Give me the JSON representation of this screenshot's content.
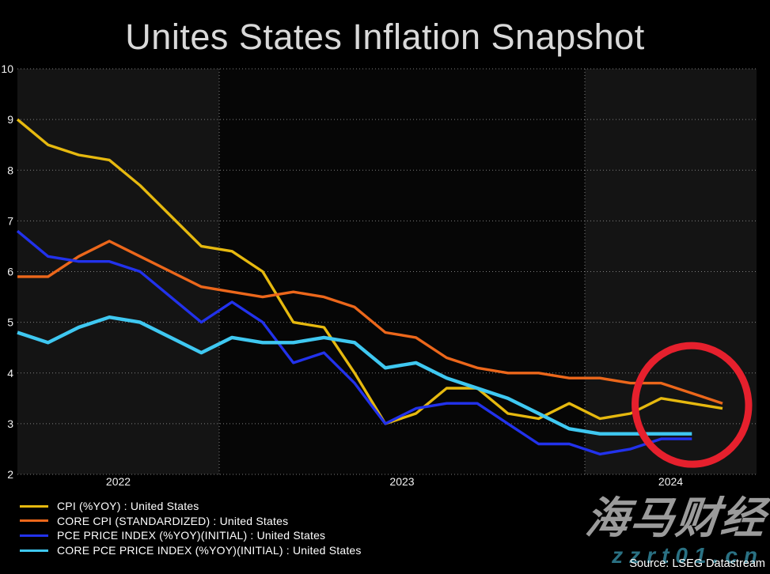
{
  "title": "Unites States Inflation Snapshot",
  "source": "Source: LSEG Datastream",
  "watermark": {
    "brand": "海马财经",
    "site": "zzrt01.cn"
  },
  "chart_data": {
    "type": "line",
    "title": "Unites States Inflation Snapshot",
    "ylabel": "",
    "xlabel": "",
    "ylim": [
      2,
      10
    ],
    "y_ticks": [
      10,
      9,
      8,
      7,
      6,
      5,
      4,
      3,
      2
    ],
    "x_year_labels": [
      "2022",
      "2023",
      "2024"
    ],
    "grid": "dotted",
    "legend_position": "bottom-left",
    "months": [
      "2022-06",
      "2022-07",
      "2022-08",
      "2022-09",
      "2022-10",
      "2022-11",
      "2022-12",
      "2023-01",
      "2023-02",
      "2023-03",
      "2023-04",
      "2023-05",
      "2023-06",
      "2023-07",
      "2023-08",
      "2023-09",
      "2023-10",
      "2023-11",
      "2023-12",
      "2024-01",
      "2024-02",
      "2024-03",
      "2024-04",
      "2024-05"
    ],
    "series": [
      {
        "name": "CPI (%YOY) : United States",
        "color": "#e6b90f",
        "line_width": 3.4,
        "values": [
          9.0,
          8.5,
          8.3,
          8.2,
          7.7,
          7.1,
          6.5,
          6.4,
          6.0,
          5.0,
          4.9,
          4.0,
          3.0,
          3.2,
          3.7,
          3.7,
          3.2,
          3.1,
          3.4,
          3.1,
          3.2,
          3.5,
          3.4,
          3.3
        ]
      },
      {
        "name": "CORE CPI (STANDARDIZED) : United States",
        "color": "#ec671b",
        "line_width": 3.4,
        "values": [
          5.9,
          5.9,
          6.3,
          6.6,
          6.3,
          6.0,
          5.7,
          5.6,
          5.5,
          5.6,
          5.5,
          5.3,
          4.8,
          4.7,
          4.3,
          4.1,
          4.0,
          4.0,
          3.9,
          3.9,
          3.8,
          3.8,
          3.6,
          3.4
        ]
      },
      {
        "name": "PCE PRICE INDEX (%YOY)(INITIAL) : United States",
        "color": "#2232ec",
        "line_width": 3.4,
        "values": [
          6.8,
          6.3,
          6.2,
          6.2,
          6.0,
          5.5,
          5.0,
          5.4,
          5.0,
          4.2,
          4.4,
          3.8,
          3.0,
          3.3,
          3.4,
          3.4,
          3.0,
          2.6,
          2.6,
          2.4,
          2.5,
          2.7,
          2.7
        ]
      },
      {
        "name": "CORE PCE PRICE INDEX (%YOY)(INITIAL) : United States",
        "color": "#3fc8f1",
        "line_width": 4.4,
        "values": [
          4.8,
          4.6,
          4.9,
          5.1,
          5.0,
          4.7,
          4.4,
          4.7,
          4.6,
          4.6,
          4.7,
          4.6,
          4.1,
          4.2,
          3.9,
          3.7,
          3.5,
          3.2,
          2.9,
          2.8,
          2.8,
          2.8,
          2.8
        ]
      }
    ],
    "annotation": {
      "shape": "ellipse",
      "color": "#e6202d",
      "stroke_width": 9,
      "center_month_index": 22,
      "center_value": 3.37,
      "radius_months": 1.85,
      "radius_value": 1.17
    }
  }
}
